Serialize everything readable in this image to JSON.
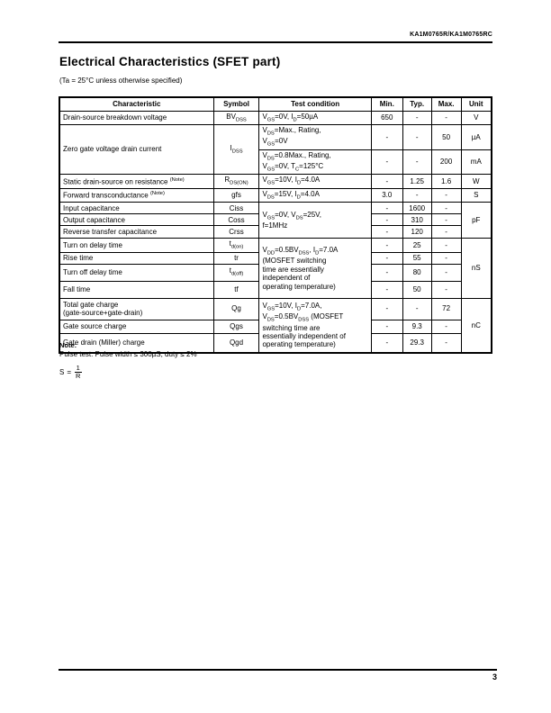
{
  "page": {
    "brand": "KA1M0765R/KA1M0765RC",
    "title": "Electrical Characteristics (SFET part)",
    "subtitle": "(Ta = 25°C unless otherwise specified)",
    "page_number": "3"
  },
  "table": {
    "headers": {
      "characteristic": "Characteristic",
      "symbol": "Symbol",
      "cond": "Test condition",
      "min": "Min.",
      "typ": "Typ.",
      "max": "Max.",
      "unit": "Unit"
    },
    "rows": [
      {
        "char": "Drain-source breakdown voltage",
        "symbol": "BV~DSS~",
        "cond": "V~GS~=0V, I~D~=50µA",
        "min": "650",
        "typ": "-",
        "max": "-",
        "unit": "V"
      },
      {
        "char": "Zero gate voltage drain current",
        "symbol": "I~DSS~",
        "cond": "V~DS~=Max., Rating,\nV~GS~=0V",
        "min": "-",
        "typ": "-",
        "max": "50",
        "unit": "µA"
      },
      {
        "cond": "V~DS~=0.8Max., Rating,\nV~GS~=0V, T~C~=125°C",
        "min": "-",
        "typ": "-",
        "max": "200",
        "unit": "mA"
      },
      {
        "char": "Static drain-source on resistance ^(Note)^",
        "symbol": "R~DS(ON)~",
        "cond": "V~GS~=10V, I~D~=4.0A",
        "min": "-",
        "typ": "1.25",
        "max": "1.6",
        "unit": "W"
      },
      {
        "char": "Forward transconductance ^(Note)^",
        "symbol": "gfs",
        "cond": "V~DS~=15V, I~D~=4.0A",
        "min": "3.0",
        "typ": "-",
        "max": "-",
        "unit": "S"
      },
      {
        "char": "Input capacitance",
        "symbol": "Ciss",
        "cond": "V~GS~=0V, V~DS~=25V,\nf=1MHz",
        "min": "-",
        "typ": "1600",
        "max": "-",
        "unit": "pF"
      },
      {
        "char": "Output capacitance",
        "symbol": "Coss",
        "min": "-",
        "typ": "310",
        "max": "-"
      },
      {
        "char": "Reverse transfer capacitance",
        "symbol": "Crss",
        "min": "-",
        "typ": "120",
        "max": "-"
      },
      {
        "char": "Turn on delay time",
        "symbol": "t~d(on)~",
        "cond": "V~DD~=0.5BV~DSS~, I~D~=7.0A\n(MOSFET switching\ntime are essentially\nindependent of\noperating temperature)",
        "min": "-",
        "typ": "25",
        "max": "-",
        "unit": "nS"
      },
      {
        "char": "Rise time",
        "symbol": "tr",
        "min": "-",
        "typ": "55",
        "max": "-"
      },
      {
        "char": "Turn off delay time",
        "symbol": "t~d(off)~",
        "min": "-",
        "typ": "80",
        "max": "-"
      },
      {
        "char": "Fall time",
        "symbol": "tf",
        "min": "-",
        "typ": "50",
        "max": "-"
      },
      {
        "char": "Total gate charge\n(gate-source+gate-drain)",
        "symbol": "Qg",
        "cond": "V~GS~=10V, I~D~=7.0A,\nV~DS~=0.5BV~DSS~ (MOSFET\nswitching time are\nessentially independent of\noperating temperature)",
        "min": "-",
        "typ": "-",
        "max": "72",
        "unit": "nC"
      },
      {
        "char": "Gate source charge",
        "symbol": "Qgs",
        "min": "-",
        "typ": "9.3",
        "max": "-"
      },
      {
        "char": "Gate drain (Miller) charge",
        "symbol": "Qgd",
        "min": "-",
        "typ": "29.3",
        "max": "-"
      }
    ]
  },
  "note": {
    "label": "Note:",
    "pulse": "Pulse test: Pulse width ≤ 300µS, duty ≤ 2%",
    "formula_lhs": "S",
    "formula_eq": "=",
    "formula_num": "1",
    "formula_den": "R"
  }
}
